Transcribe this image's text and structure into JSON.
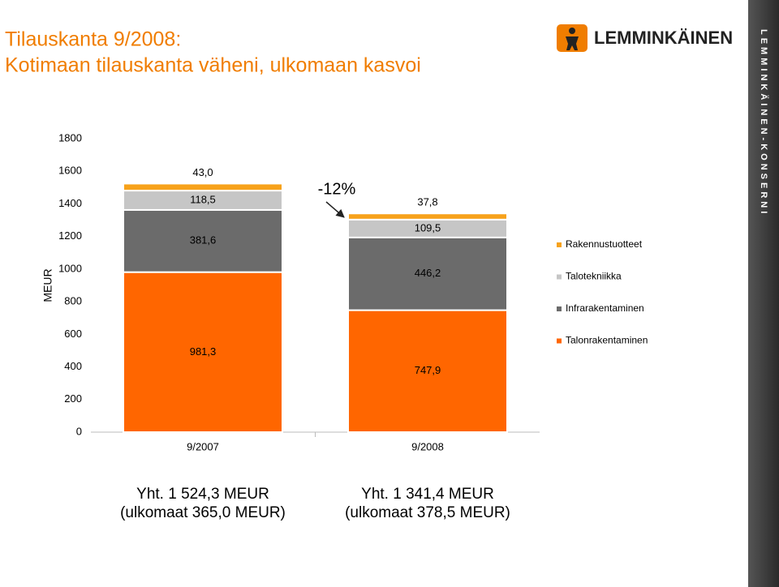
{
  "header": {
    "title_lines": [
      "Tilauskanta 9/2008:",
      "Kotimaan tilauskanta väheni, ulkomaan kasvoi"
    ],
    "logo": "LEMMINKÄINEN",
    "side_text": "LEMMINKÄINEN-KONSERNI"
  },
  "chart_data": {
    "type": "bar",
    "stacked": true,
    "ylabel": "MEUR",
    "categories": [
      "9/2007",
      "9/2008"
    ],
    "series": [
      {
        "name": "Talonrakentaminen",
        "color": "#ff6600",
        "values": [
          981.3,
          747.9
        ],
        "value_labels": [
          "981,3",
          "747,9"
        ]
      },
      {
        "name": "Infrarakentaminen",
        "color": "#6b6b6b",
        "values": [
          381.6,
          446.2
        ],
        "value_labels": [
          "381,6",
          "446,2"
        ]
      },
      {
        "name": "Talotekniikka",
        "color": "#c6c6c6",
        "values": [
          118.5,
          109.5
        ],
        "value_labels": [
          "118,5",
          "109,5"
        ]
      },
      {
        "name": "Rakennustuotteet",
        "color": "#f7a21b",
        "values": [
          43.0,
          37.8
        ],
        "value_labels": [
          "43,0",
          "37,8"
        ]
      }
    ],
    "ylim": [
      0,
      1800
    ],
    "yticks": [
      0,
      200,
      400,
      600,
      800,
      1000,
      1200,
      1400,
      1600,
      1800
    ],
    "annotation": "-12%",
    "totals": [
      [
        "Yht. 1 524,3 MEUR",
        "(ulkomaat 365,0 MEUR)"
      ],
      [
        "Yht. 1 341,4 MEUR",
        "(ulkomaat 378,5 MEUR)"
      ]
    ]
  }
}
